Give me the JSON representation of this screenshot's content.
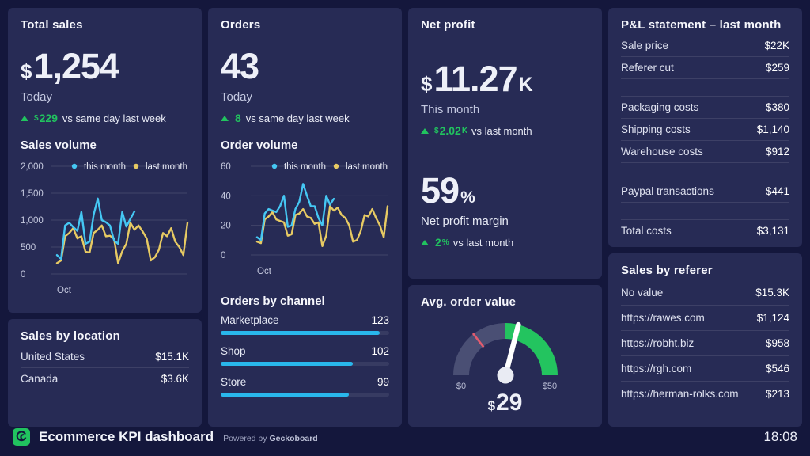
{
  "colors": {
    "page_bg": "#14173c",
    "card_bg": "#272b55",
    "accent_green": "#21c35f",
    "line_this_month": "#45c7f3",
    "line_last_month": "#e7ca63",
    "bar_cyan": "#29b7ec",
    "gauge_track": "#4a4f74",
    "gauge_fill": "#23c45f",
    "gauge_threshold": "#e25b6e"
  },
  "footer": {
    "title": "Ecommerce KPI dashboard",
    "powered_prefix": "Powered by",
    "powered_brand": "Geckoboard",
    "clock": "18:08"
  },
  "cards": {
    "total_sales": {
      "title": "Total sales",
      "currency": "$",
      "value": "1,254",
      "caption": "Today",
      "delta": {
        "prefix": "$",
        "value": "229",
        "suffix": "",
        "rest": "vs same day last week"
      },
      "section_title": "Sales volume"
    },
    "orders": {
      "title": "Orders",
      "value": "43",
      "caption": "Today",
      "delta": {
        "prefix": "",
        "value": "8",
        "suffix": "",
        "rest": "vs same day last week"
      },
      "section_title": "Order volume",
      "channels_title": "Orders by channel"
    },
    "net_profit": {
      "title": "Net profit",
      "currency": "$",
      "value": "11.27",
      "unit": "K",
      "caption": "This month",
      "delta": {
        "prefix": "$",
        "value": "2.02",
        "suffix": "K",
        "rest": "vs last month"
      },
      "margin": {
        "value": "59",
        "unit": "%",
        "caption": "Net profit margin",
        "delta": {
          "prefix": "",
          "value": "2",
          "suffix": "%",
          "rest": "vs last month"
        }
      }
    },
    "avg_order_value": {
      "title": "Avg. order value",
      "currency": "$",
      "value": "29"
    },
    "pl_statement": {
      "title": "P&L statement – last month",
      "rows": [
        {
          "label": "Sale price",
          "value": "$22K"
        },
        {
          "label": "Referer cut",
          "value": "$259"
        },
        {
          "label": "Packaging costs",
          "value": "$380"
        },
        {
          "label": "Shipping costs",
          "value": "$1,140"
        },
        {
          "label": "Warehouse costs",
          "value": "$912"
        },
        {
          "label": "Paypal transactions",
          "value": "$441"
        },
        {
          "label": "Total costs",
          "value": "$3,131"
        }
      ]
    },
    "sales_by_referer": {
      "title": "Sales by referer",
      "rows": [
        {
          "label": "No value",
          "value": "$15.3K"
        },
        {
          "label": "https://rawes.com",
          "value": "$1,124"
        },
        {
          "label": "https://robht.biz",
          "value": "$958"
        },
        {
          "label": "https://rgh.com",
          "value": "$546"
        },
        {
          "label": "https://herman-rolks.com",
          "value": "$213"
        }
      ]
    },
    "sales_by_location": {
      "title": "Sales by location",
      "rows": [
        {
          "label": "United States",
          "value": "$15.1K"
        },
        {
          "label": "Canada",
          "value": "$3.6K"
        }
      ]
    }
  },
  "chart_data": [
    {
      "id": "sales-volume",
      "type": "line",
      "title": "Sales volume",
      "x_label": "Oct",
      "ylim": [
        0,
        2000
      ],
      "grid": true,
      "legend_position": "top-right",
      "yticks": [
        {
          "label": "2,000",
          "value": 2000
        },
        {
          "label": "1,500",
          "value": 1500
        },
        {
          "label": "1,000",
          "value": 1000
        },
        {
          "label": "500",
          "value": 500
        },
        {
          "label": "0",
          "value": 0
        }
      ],
      "legend": [
        {
          "label": "this month",
          "color": "#45c7f3"
        },
        {
          "label": "last month",
          "color": "#e7ca63"
        }
      ],
      "series": [
        {
          "name": "this month",
          "color": "#45c7f3",
          "values": [
            350,
            280,
            900,
            950,
            870,
            800,
            1150,
            560,
            600,
            1100,
            1400,
            1000,
            960,
            900,
            620,
            560,
            1150,
            880,
            1020,
            1160
          ]
        },
        {
          "name": "last month",
          "color": "#e7ca63",
          "values": [
            200,
            250,
            700,
            760,
            850,
            660,
            700,
            410,
            400,
            760,
            820,
            900,
            700,
            710,
            650,
            200,
            420,
            560,
            950,
            820,
            900,
            790,
            660,
            250,
            310,
            450,
            760,
            700,
            850,
            600,
            500,
            350,
            950
          ]
        }
      ]
    },
    {
      "id": "order-volume",
      "type": "line",
      "title": "Order volume",
      "x_label": "Oct",
      "ylim": [
        0,
        60
      ],
      "grid": true,
      "legend_position": "top-right",
      "yticks": [
        {
          "label": "60",
          "value": 60
        },
        {
          "label": "40",
          "value": 40
        },
        {
          "label": "20",
          "value": 20
        },
        {
          "label": "0",
          "value": 0
        }
      ],
      "legend": [
        {
          "label": "this month",
          "color": "#45c7f3"
        },
        {
          "label": "last month",
          "color": "#e7ca63"
        }
      ],
      "series": [
        {
          "name": "this month",
          "color": "#45c7f3",
          "values": [
            12,
            10,
            28,
            31,
            30,
            29,
            33,
            40,
            19,
            20,
            31,
            36,
            48,
            40,
            33,
            33,
            25,
            20,
            40,
            34,
            38
          ]
        },
        {
          "name": "last month",
          "color": "#e7ca63",
          "values": [
            9,
            8,
            24,
            26,
            29,
            24,
            23,
            22,
            13,
            14,
            27,
            28,
            31,
            26,
            25,
            21,
            22,
            6,
            13,
            33,
            30,
            32,
            27,
            25,
            20,
            9,
            10,
            16,
            27,
            26,
            31,
            25,
            20,
            12,
            33
          ]
        }
      ]
    },
    {
      "id": "orders-by-channel",
      "type": "bar",
      "title": "Orders by channel",
      "scale_max": 130,
      "color": "#29b7ec",
      "items": [
        {
          "label": "Marketplace",
          "value": 123
        },
        {
          "label": "Shop",
          "value": 102
        },
        {
          "label": "Store",
          "value": 99
        }
      ]
    },
    {
      "id": "avg-order-gauge",
      "type": "gauge",
      "title": "Avg. order value",
      "min": 0,
      "max": 50,
      "value": 29,
      "min_label": "$0",
      "max_label": "$50",
      "threshold_fraction": 0.29,
      "colors": {
        "track": "#4a4f74",
        "fill": "#23c45f",
        "threshold": "#e25b6e",
        "needle": "#ffffff"
      }
    }
  ]
}
